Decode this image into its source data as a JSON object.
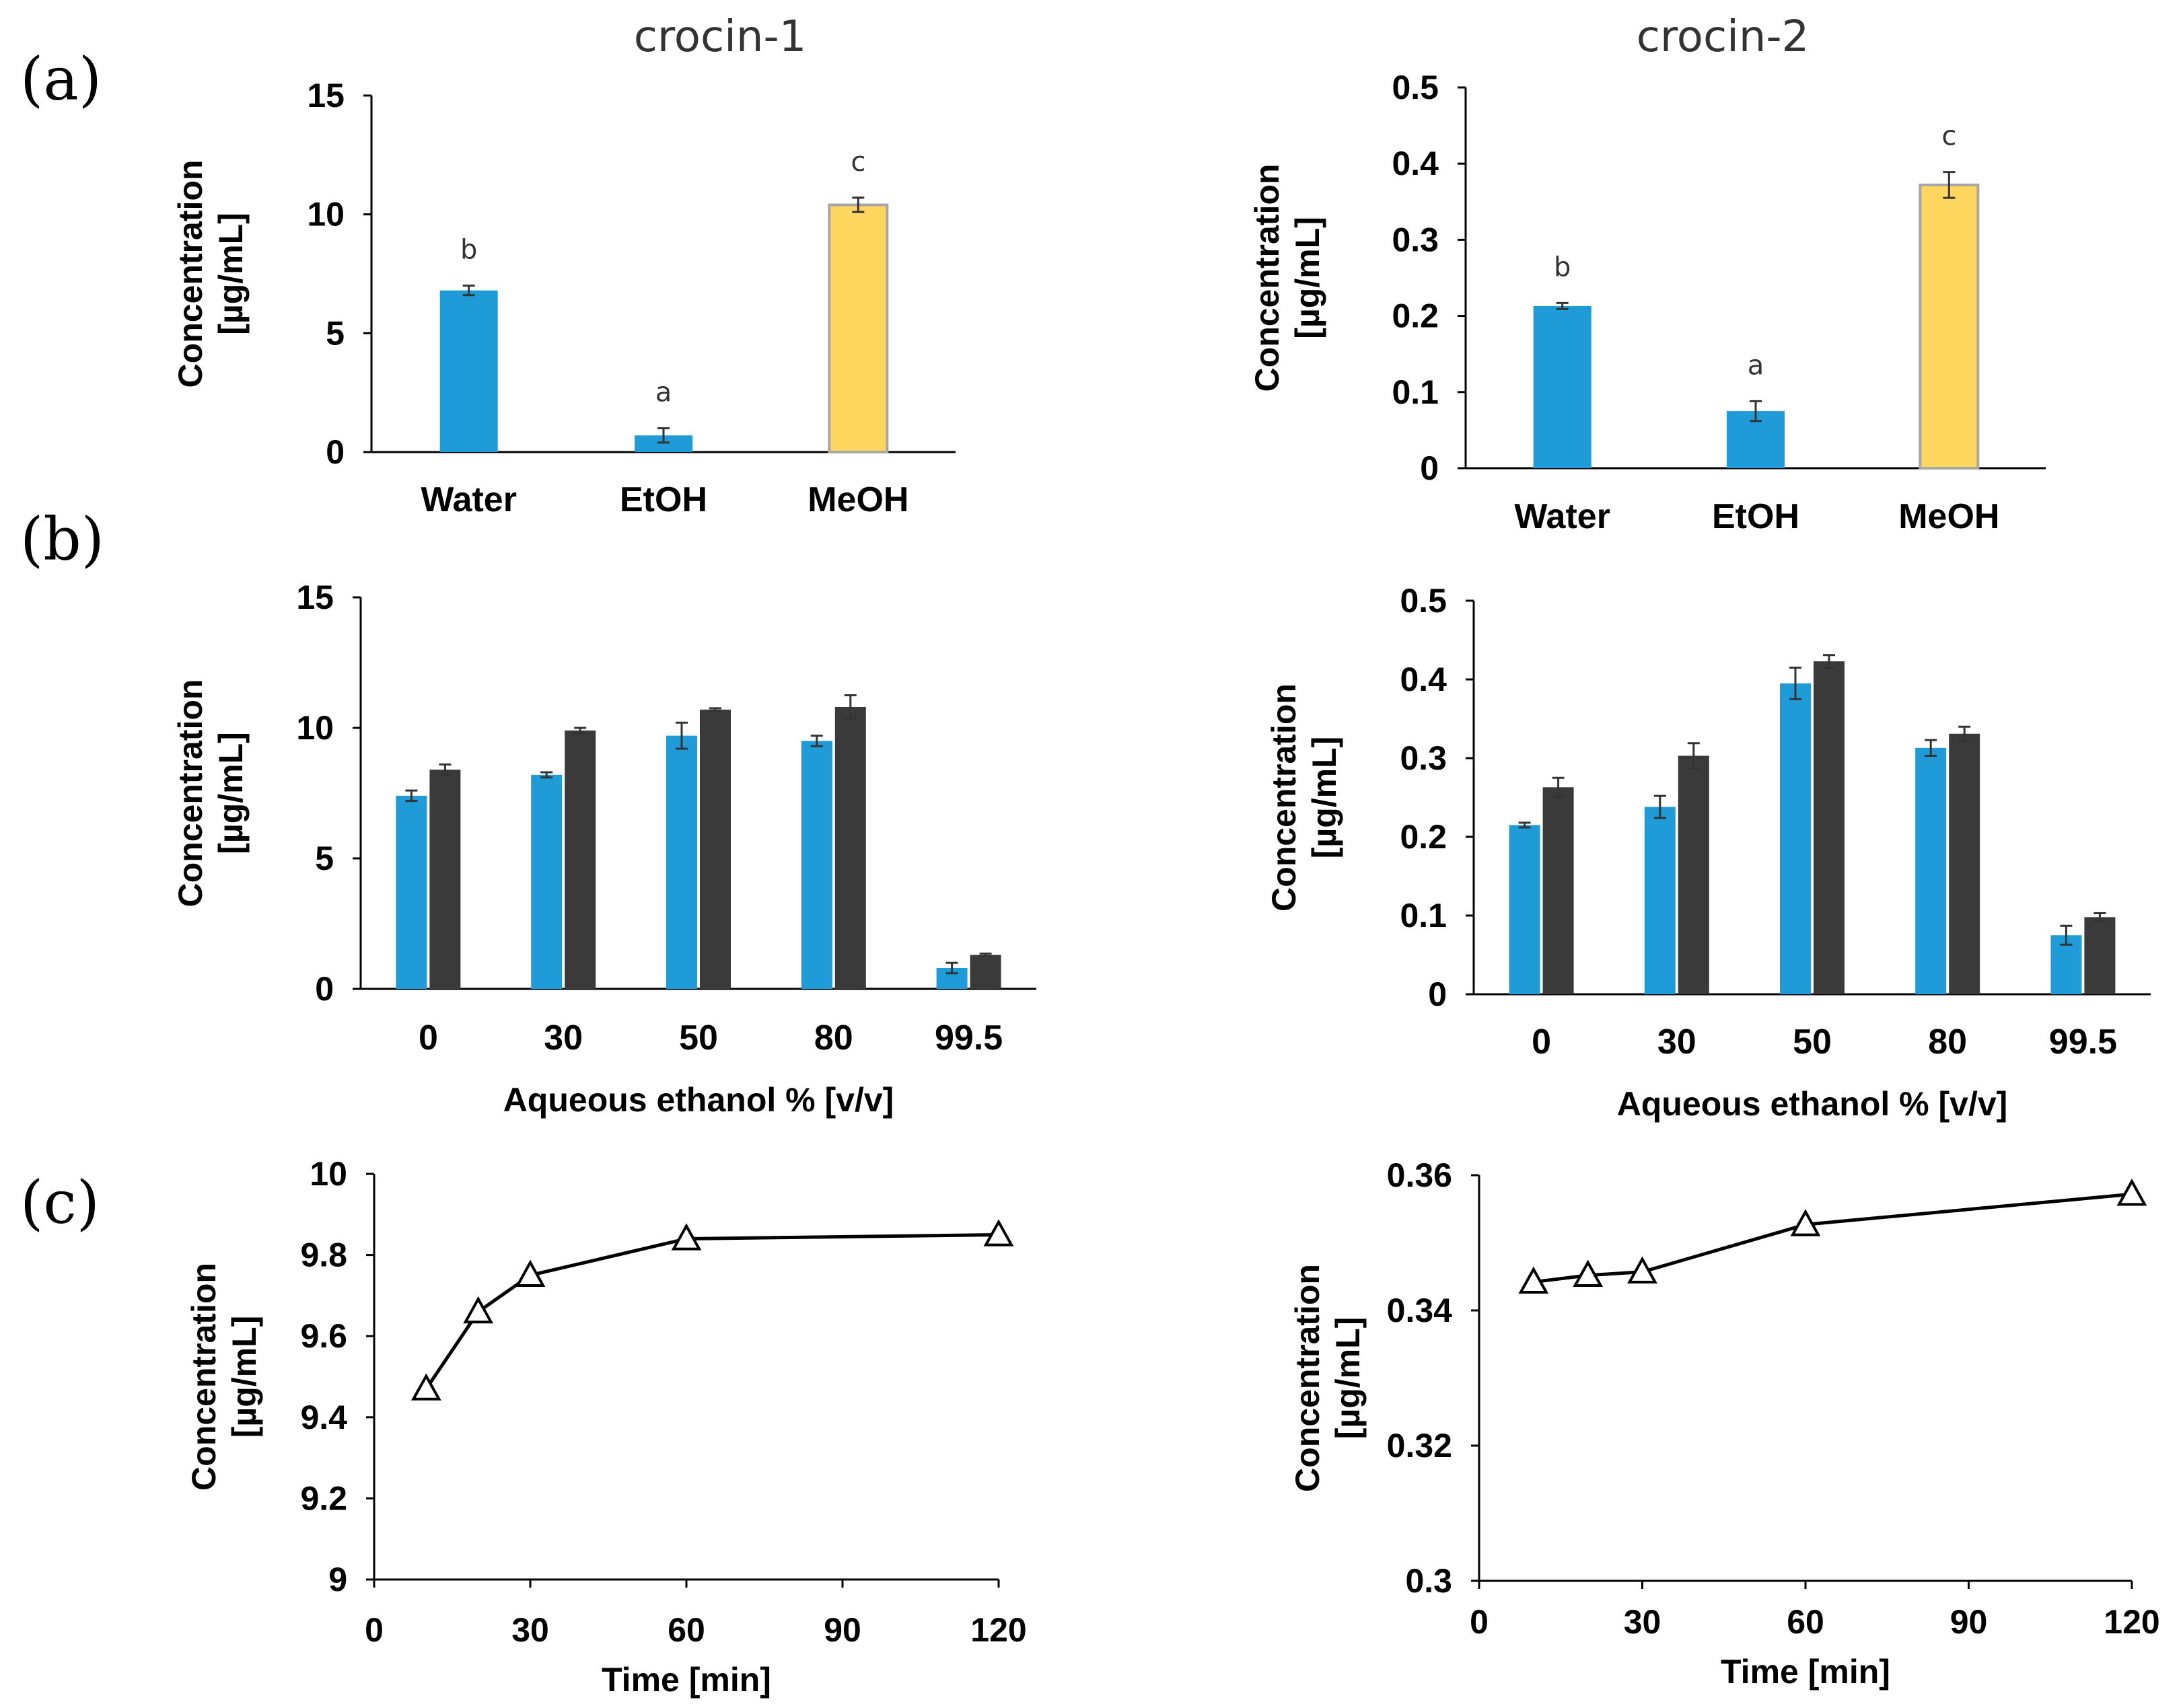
{
  "figure": {
    "panel_letters": [
      "(a)",
      "(b)",
      "(c)"
    ],
    "column_titles": [
      "crocin-1",
      "crocin-2"
    ],
    "colors": {
      "blue": "#1f9bd8",
      "yellow": "#ffd75e",
      "yellow_edge": "#a6a6a6",
      "dark": "#3a3a3a",
      "axis": "#000000"
    }
  },
  "chart_data": [
    {
      "id": "a-crocin-1",
      "type": "bar",
      "title": "crocin-1",
      "categories": [
        "Water",
        "EtOH",
        "MeOH"
      ],
      "values": [
        6.8,
        0.7,
        10.4
      ],
      "errors": [
        0.2,
        0.3,
        0.3
      ],
      "bar_colors": [
        "blue",
        "blue",
        "yellow"
      ],
      "significance": [
        "b",
        "a",
        "c"
      ],
      "ylabel": [
        "Concentration",
        "[µg/mL]"
      ],
      "xlabel": "",
      "ylim": [
        0,
        15
      ],
      "yticks": [
        "0",
        "5",
        "10",
        "15"
      ]
    },
    {
      "id": "a-crocin-2",
      "type": "bar",
      "title": "crocin-2",
      "categories": [
        "Water",
        "EtOH",
        "MeOH"
      ],
      "values": [
        0.213,
        0.075,
        0.372
      ],
      "errors": [
        0.004,
        0.013,
        0.017
      ],
      "bar_colors": [
        "blue",
        "blue",
        "yellow"
      ],
      "significance": [
        "b",
        "a",
        "c"
      ],
      "ylabel": [
        "Concentration",
        "[µg/mL]"
      ],
      "xlabel": "",
      "ylim": [
        0,
        0.5
      ],
      "yticks": [
        "0",
        "0.1",
        "0.2",
        "0.3",
        "0.4",
        "0.5"
      ]
    },
    {
      "id": "b-crocin-1",
      "type": "bar",
      "categories": [
        "0",
        "30",
        "50",
        "80",
        "99.5"
      ],
      "series": [
        {
          "name": "series-1",
          "color": "blue",
          "values": [
            7.4,
            8.2,
            9.7,
            9.5,
            0.8
          ],
          "errors": [
            0.2,
            0.1,
            0.5,
            0.2,
            0.2
          ]
        },
        {
          "name": "series-2",
          "color": "dark",
          "values": [
            8.4,
            9.9,
            10.7,
            10.8,
            1.3
          ],
          "errors": [
            0.2,
            0.1,
            0.05,
            0.45,
            0.05
          ]
        }
      ],
      "ylabel": [
        "Concentration",
        "[µg/mL]"
      ],
      "xlabel": "Aqueous ethanol % [v/v]",
      "ylim": [
        0,
        15
      ],
      "yticks": [
        "0",
        "5",
        "10",
        "15"
      ]
    },
    {
      "id": "b-crocin-2",
      "type": "bar",
      "categories": [
        "0",
        "30",
        "50",
        "80",
        "99.5"
      ],
      "series": [
        {
          "name": "series-1",
          "color": "blue",
          "values": [
            0.215,
            0.238,
            0.395,
            0.313,
            0.075
          ],
          "errors": [
            0.003,
            0.014,
            0.02,
            0.01,
            0.012
          ]
        },
        {
          "name": "series-2",
          "color": "dark",
          "values": [
            0.263,
            0.303,
            0.423,
            0.331,
            0.098
          ],
          "errors": [
            0.012,
            0.016,
            0.008,
            0.009,
            0.005
          ]
        }
      ],
      "ylabel": [
        "Concentration",
        "[µg/mL]"
      ],
      "xlabel": "Aqueous ethanol % [v/v]",
      "ylim": [
        0,
        0.5
      ],
      "yticks": [
        "0",
        "0.1",
        "0.2",
        "0.3",
        "0.4",
        "0.5"
      ]
    },
    {
      "id": "c-crocin-1",
      "type": "line",
      "marker": "open-triangle",
      "x": [
        10,
        20,
        30,
        60,
        120
      ],
      "y": [
        9.47,
        9.66,
        9.75,
        9.84,
        9.85
      ],
      "ylabel": [
        "Concentration",
        "[µg/mL]"
      ],
      "xlabel": "Time [min]",
      "xlim": [
        0,
        120
      ],
      "xticks": [
        "0",
        "30",
        "60",
        "90",
        "120"
      ],
      "ylim": [
        9,
        10
      ],
      "yticks": [
        "9",
        "9.2",
        "9.4",
        "9.6",
        "9.8",
        "10"
      ]
    },
    {
      "id": "c-crocin-2",
      "type": "line",
      "marker": "open-triangle",
      "x": [
        10,
        20,
        30,
        60,
        120
      ],
      "y": [
        0.3442,
        0.3452,
        0.3457,
        0.3527,
        0.3572
      ],
      "ylabel": [
        "Concentration",
        "[µg/mL]"
      ],
      "xlabel": "Time [min]",
      "xlim": [
        0,
        120
      ],
      "xticks": [
        "0",
        "30",
        "60",
        "90",
        "120"
      ],
      "ylim": [
        0.3,
        0.36
      ],
      "yticks": [
        "0.3",
        "0.32",
        "0.34",
        "0.36"
      ]
    }
  ]
}
